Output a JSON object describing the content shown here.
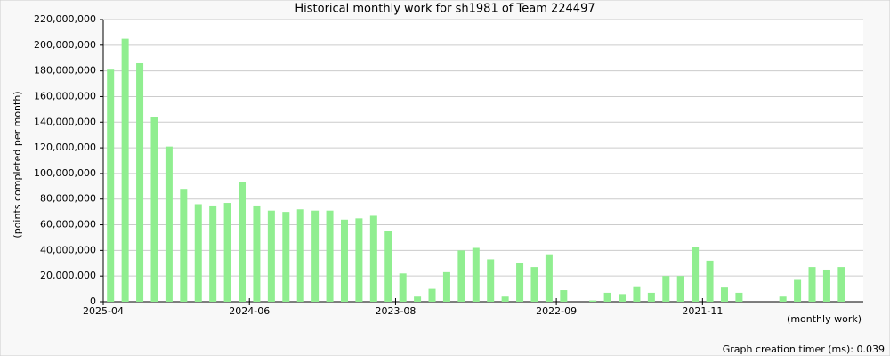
{
  "chart_data": {
    "type": "bar",
    "title": "Historical monthly work for sh1981 of Team 224497",
    "y_label": "(points completed per month)",
    "x_label": "(monthly work)",
    "footer": "Graph creation timer (ms): 0.039",
    "color": "#90ee90",
    "grid": true,
    "categories": [
      "2025-04",
      null,
      null,
      null,
      null,
      null,
      null,
      null,
      null,
      null,
      "2024-06",
      null,
      null,
      null,
      null,
      null,
      null,
      null,
      null,
      null,
      "2023-08",
      null,
      null,
      null,
      null,
      null,
      null,
      null,
      null,
      null,
      null,
      "2022-09",
      null,
      null,
      null,
      null,
      null,
      null,
      null,
      null,
      null,
      "2021-11",
      null,
      null,
      null,
      null,
      null,
      null,
      null,
      null,
      null
    ],
    "values": [
      181000000,
      205000000,
      186000000,
      144000000,
      121000000,
      88000000,
      76000000,
      75000000,
      77000000,
      93000000,
      75000000,
      71000000,
      70000000,
      72000000,
      71000000,
      71000000,
      64000000,
      65000000,
      67000000,
      55000000,
      22000000,
      4000000,
      10000000,
      23000000,
      40000000,
      42000000,
      33000000,
      4000000,
      30000000,
      27000000,
      37000000,
      9000000,
      0,
      1000000,
      7000000,
      6000000,
      12000000,
      7000000,
      20000000,
      20000000,
      43000000,
      32000000,
      11000000,
      7000000,
      0,
      0,
      4000000,
      17000000,
      27000000,
      25000000,
      27000000
    ],
    "ylim": [
      0,
      220000000
    ],
    "yticks": [
      0,
      {
        "value": 20000000,
        "label": "20,000,000"
      },
      {
        "value": 40000000,
        "label": "40,000,000"
      },
      {
        "value": 60000000,
        "label": "60,000,000"
      },
      {
        "value": 80000000,
        "label": "80,000,000"
      },
      {
        "value": 100000000,
        "label": "100,000,000"
      },
      {
        "value": 120000000,
        "label": "120,000,000"
      },
      {
        "value": 140000000,
        "label": "140,000,000"
      },
      {
        "value": 160000000,
        "label": "160,000,000"
      },
      {
        "value": 180000000,
        "label": "180,000,000"
      },
      {
        "value": 200000000,
        "label": "200,000,000"
      },
      {
        "value": 220000000,
        "label": "220,000,000"
      }
    ]
  }
}
